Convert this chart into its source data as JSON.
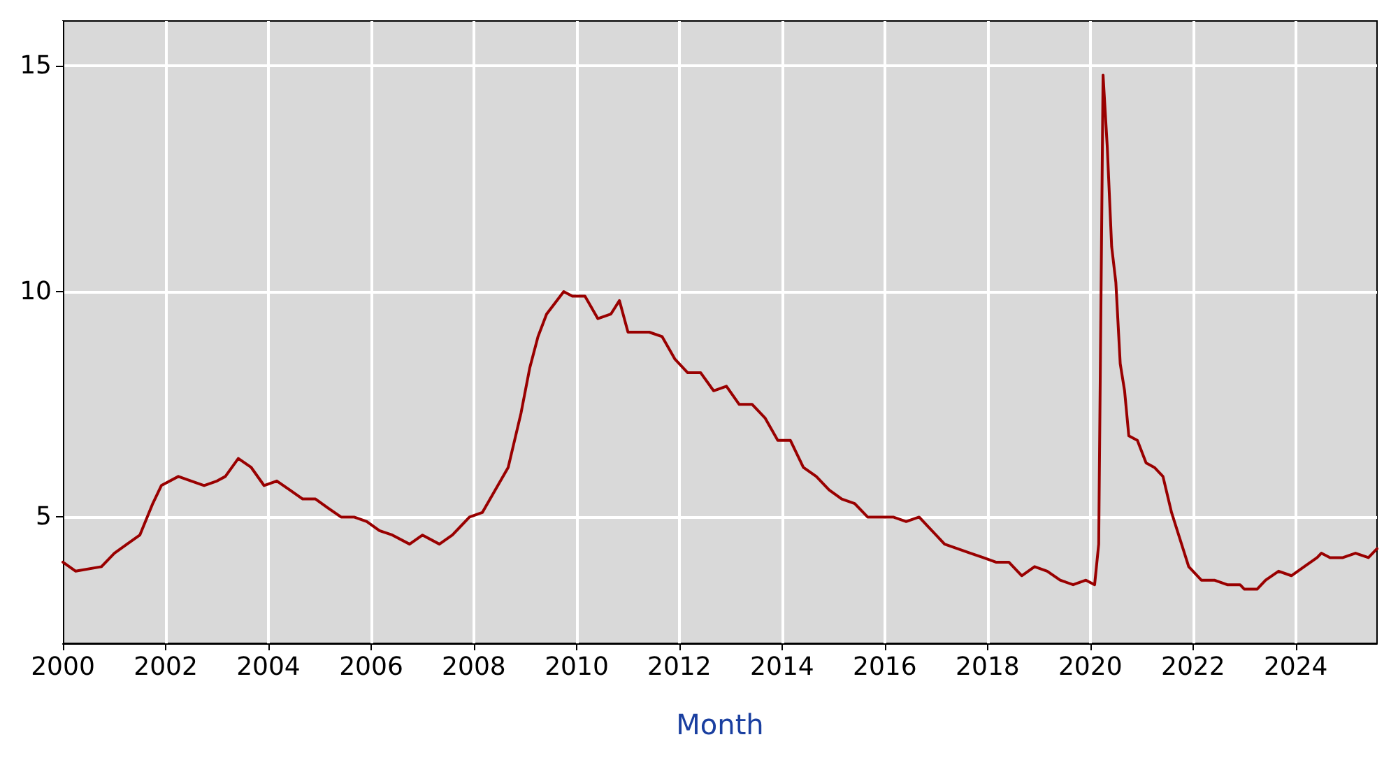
{
  "chart_data": {
    "type": "line",
    "xlabel": "Month",
    "xlim": [
      "2000-01",
      "2025-08"
    ],
    "xticks": [
      "2000",
      "2002",
      "2004",
      "2006",
      "2008",
      "2010",
      "2012",
      "2014",
      "2016",
      "2018",
      "2020",
      "2022",
      "2024"
    ],
    "ylim": [
      2.2,
      16
    ],
    "yticks": [
      5,
      10,
      15
    ],
    "grid": true,
    "marker": "none",
    "line_style": "solid",
    "series": [
      {
        "color": "#990000",
        "x": [
          "2000-01",
          "2000-04",
          "2000-10",
          "2001-01",
          "2001-04",
          "2001-07",
          "2001-10",
          "2001-12",
          "2002-04",
          "2002-07",
          "2002-10",
          "2003-01",
          "2003-03",
          "2003-06",
          "2003-09",
          "2003-12",
          "2004-03",
          "2004-06",
          "2004-09",
          "2004-12",
          "2005-03",
          "2005-06",
          "2005-09",
          "2005-12",
          "2006-03",
          "2006-06",
          "2006-10",
          "2007-01",
          "2007-05",
          "2007-08",
          "2007-12",
          "2008-03",
          "2008-06",
          "2008-09",
          "2008-12",
          "2009-02",
          "2009-04",
          "2009-06",
          "2009-10",
          "2009-12",
          "2010-03",
          "2010-06",
          "2010-09",
          "2010-11",
          "2011-01",
          "2011-06",
          "2011-09",
          "2011-12",
          "2012-03",
          "2012-06",
          "2012-09",
          "2012-12",
          "2013-03",
          "2013-06",
          "2013-09",
          "2013-12",
          "2014-03",
          "2014-06",
          "2014-09",
          "2014-12",
          "2015-03",
          "2015-06",
          "2015-09",
          "2015-12",
          "2016-03",
          "2016-06",
          "2016-09",
          "2016-12",
          "2017-03",
          "2017-06",
          "2017-09",
          "2017-12",
          "2018-03",
          "2018-06",
          "2018-09",
          "2018-12",
          "2019-03",
          "2019-06",
          "2019-09",
          "2019-12",
          "2020-02",
          "2020-03",
          "2020-04",
          "2020-05",
          "2020-06",
          "2020-07",
          "2020-08",
          "2020-09",
          "2020-10",
          "2020-12",
          "2021-02",
          "2021-04",
          "2021-06",
          "2021-08",
          "2021-10",
          "2021-12",
          "2022-03",
          "2022-06",
          "2022-09",
          "2022-12",
          "2023-01",
          "2023-04",
          "2023-06",
          "2023-09",
          "2023-12",
          "2024-03",
          "2024-06",
          "2024-07",
          "2024-09",
          "2024-12",
          "2025-03",
          "2025-06",
          "2025-08"
        ],
        "values": [
          4.0,
          3.8,
          3.9,
          4.2,
          4.4,
          4.6,
          5.3,
          5.7,
          5.9,
          5.8,
          5.7,
          5.8,
          5.9,
          6.3,
          6.1,
          5.7,
          5.8,
          5.6,
          5.4,
          5.4,
          5.2,
          5.0,
          5.0,
          4.9,
          4.7,
          4.6,
          4.4,
          4.6,
          4.4,
          4.6,
          5.0,
          5.1,
          5.6,
          6.1,
          7.3,
          8.3,
          9.0,
          9.5,
          10.0,
          9.9,
          9.9,
          9.4,
          9.5,
          9.8,
          9.1,
          9.1,
          9.0,
          8.5,
          8.2,
          8.2,
          7.8,
          7.9,
          7.5,
          7.5,
          7.2,
          6.7,
          6.7,
          6.1,
          5.9,
          5.6,
          5.4,
          5.3,
          5.0,
          5.0,
          5.0,
          4.9,
          5.0,
          4.7,
          4.4,
          4.3,
          4.2,
          4.1,
          4.0,
          4.0,
          3.7,
          3.9,
          3.8,
          3.6,
          3.5,
          3.6,
          3.5,
          4.4,
          14.8,
          13.2,
          11.0,
          10.2,
          8.4,
          7.8,
          6.8,
          6.7,
          6.2,
          6.1,
          5.9,
          5.1,
          4.5,
          3.9,
          3.6,
          3.6,
          3.5,
          3.5,
          3.4,
          3.4,
          3.6,
          3.8,
          3.7,
          3.9,
          4.1,
          4.2,
          4.1,
          4.1,
          4.2,
          4.1,
          4.3
        ]
      }
    ]
  }
}
